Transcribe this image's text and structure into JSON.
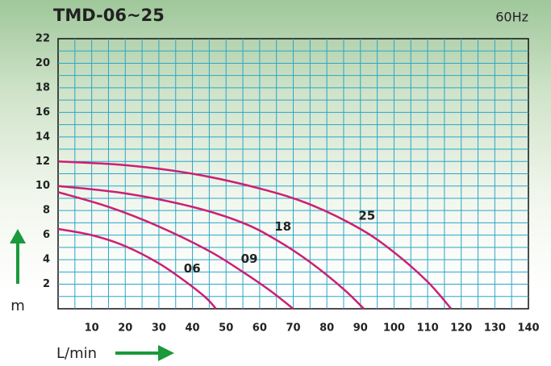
{
  "chart_data": {
    "type": "line",
    "title": "TMD-06~25",
    "subtitle": "60Hz",
    "x_label": "L/min",
    "y_label": "m",
    "xlim": [
      0,
      140
    ],
    "xticks": [
      10,
      20,
      30,
      40,
      50,
      60,
      70,
      80,
      90,
      100,
      110,
      120,
      130,
      140
    ],
    "ylim": [
      0,
      22
    ],
    "yticks": [
      2,
      4,
      6,
      8,
      10,
      12,
      14,
      16,
      18,
      20,
      22
    ],
    "grid": true,
    "minor_grid": true,
    "grid_color": "#2aa6c8",
    "arrow_color": "#1a9a3a",
    "series": [
      {
        "name": "25",
        "color": "#cc1f74",
        "x": [
          0,
          20,
          40,
          60,
          75,
          90,
          100,
          110,
          117
        ],
        "values": [
          12,
          11.7,
          11,
          9.8,
          8.5,
          6.5,
          4.6,
          2.2,
          0
        ]
      },
      {
        "name": "18",
        "color": "#cc1f74",
        "x": [
          0,
          20,
          40,
          55,
          65,
          75,
          85,
          91
        ],
        "values": [
          10,
          9.4,
          8.3,
          7,
          5.6,
          3.8,
          1.6,
          0
        ]
      },
      {
        "name": "09",
        "color": "#cc1f74",
        "x": [
          0,
          15,
          30,
          45,
          55,
          63,
          70
        ],
        "values": [
          9.5,
          8.3,
          6.7,
          4.7,
          3,
          1.5,
          0
        ]
      },
      {
        "name": "06",
        "color": "#cc1f74",
        "x": [
          0,
          10,
          20,
          30,
          38,
          44,
          47
        ],
        "values": [
          6.5,
          6,
          5.1,
          3.7,
          2.2,
          0.9,
          0
        ]
      }
    ]
  }
}
